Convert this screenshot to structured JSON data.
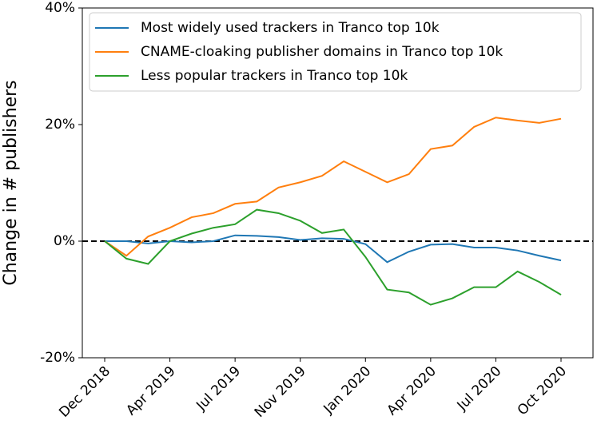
{
  "chart_data": {
    "type": "line",
    "ylabel": "Change in # publishers",
    "categories": [
      "Dec 2018",
      null,
      null,
      "Apr 2019",
      null,
      null,
      "Jul 2019",
      null,
      null,
      "Nov 2019",
      null,
      null,
      "Jan 2020",
      null,
      null,
      "Apr 2020",
      null,
      null,
      "Jul 2020",
      null,
      null,
      "Oct 2020"
    ],
    "series": [
      {
        "name": "Most widely used trackers in Tranco top 10k",
        "color": "#1f77b4",
        "values": [
          0,
          0,
          -0.4,
          0,
          -0.2,
          0,
          1.0,
          0.9,
          0.7,
          0.2,
          0.5,
          0.4,
          -0.5,
          -3.6,
          -1.8,
          -0.6,
          -0.5,
          -1.1,
          -1.1,
          -1.6,
          -2.5,
          -3.3
        ]
      },
      {
        "name": "CNAME-cloaking publisher domains in Tranco top 10k",
        "color": "#ff7f0e",
        "values": [
          0,
          -2.5,
          0.8,
          2.3,
          4.1,
          4.8,
          6.4,
          6.8,
          9.2,
          10.1,
          11.2,
          13.7,
          11.9,
          10.1,
          11.5,
          15.8,
          16.4,
          19.6,
          21.2,
          20.7,
          20.3,
          21.0
        ]
      },
      {
        "name": "Less popular trackers in Tranco top 10k",
        "color": "#2ca02c",
        "values": [
          0,
          -3.0,
          -3.9,
          0,
          1.3,
          2.3,
          2.9,
          5.4,
          4.8,
          3.5,
          1.4,
          2.0,
          -2.7,
          -8.3,
          -8.8,
          -10.9,
          -9.8,
          -7.9,
          -7.9,
          -5.2,
          -7.0,
          -9.2
        ]
      }
    ],
    "ylim": [
      -20,
      40
    ],
    "yticks": [
      {
        "value": -20,
        "label": "-20%"
      },
      {
        "value": 0,
        "label": "0%"
      },
      {
        "value": 20,
        "label": "20%"
      },
      {
        "value": 40,
        "label": "40%"
      }
    ],
    "reference_line": {
      "value": 0,
      "color": "#000000",
      "style": "dashed"
    },
    "legend": "upper left",
    "grid": false
  }
}
